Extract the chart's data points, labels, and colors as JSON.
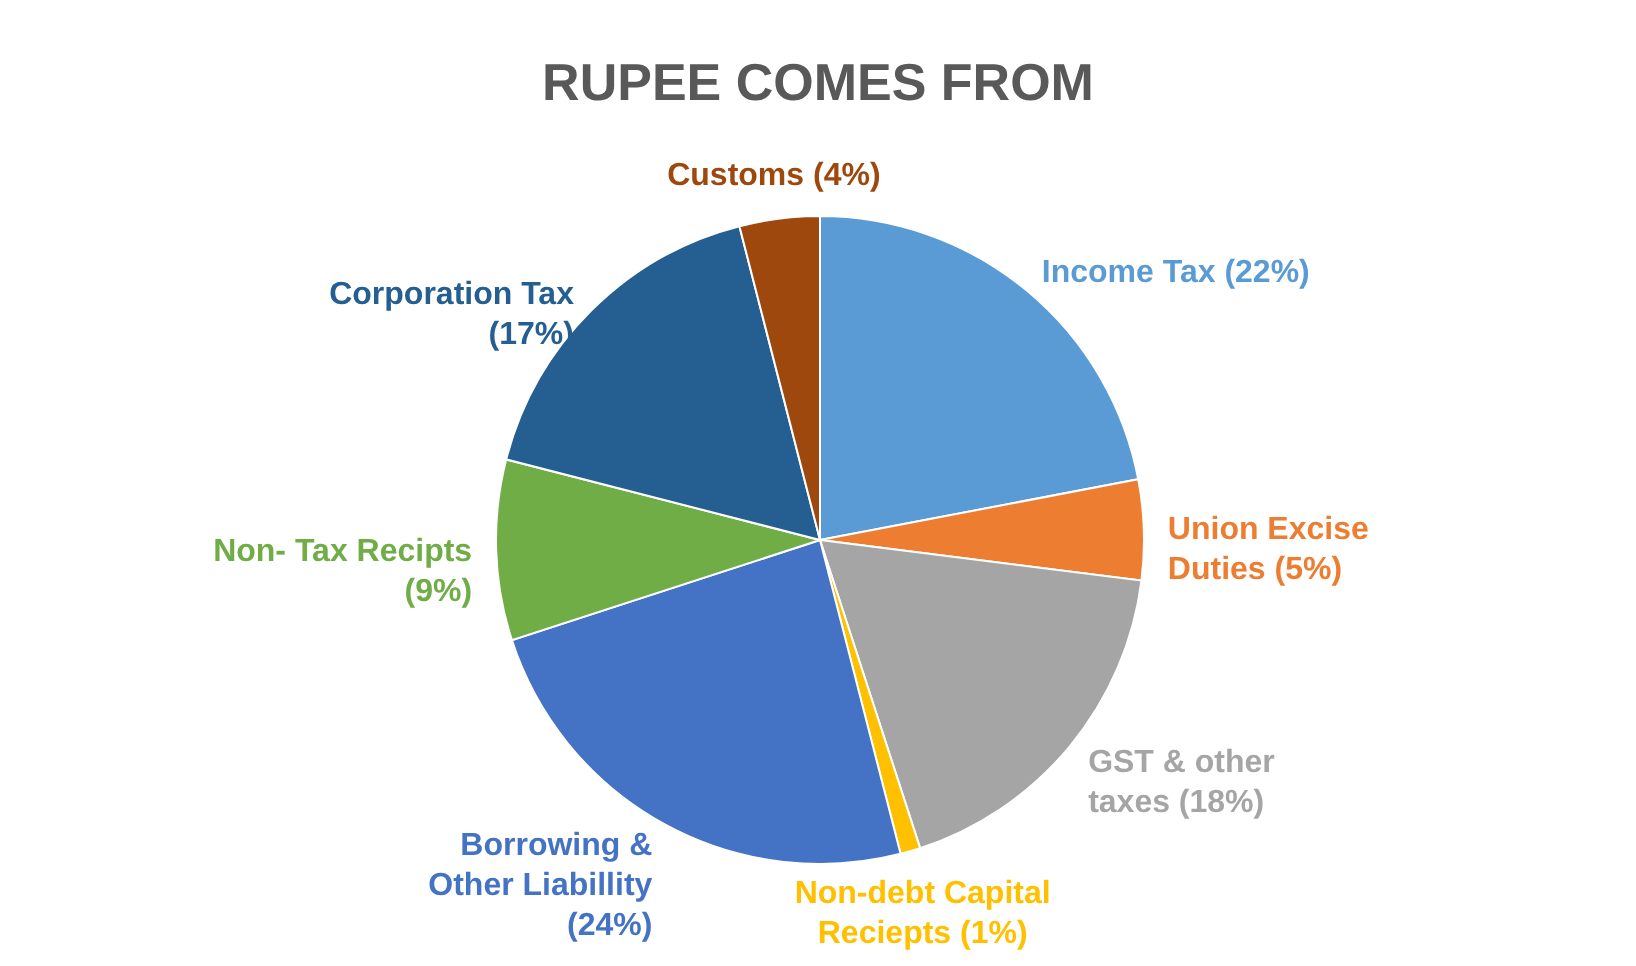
{
  "chart_data": {
    "type": "pie",
    "title": "RUPEE COMES FROM",
    "categories": [
      "Income Tax",
      "Union Excise Duties",
      "GST & other taxes",
      "Non-debt Capital Reciepts",
      "Borrowing & Other Liabillity",
      "Non- Tax Recipts",
      "Corporation Tax",
      "Customs"
    ],
    "values": [
      22,
      5,
      18,
      1,
      24,
      9,
      17,
      4
    ],
    "value_labels": [
      "(22%)",
      "(5%)",
      "(18%)",
      "(1%)",
      "(24%)",
      "(9%)",
      "(17%)",
      "(4%)"
    ],
    "colors": [
      "#5b9bd5",
      "#ed7d31",
      "#a5a5a5",
      "#ffc000",
      "#4472c4",
      "#70ad47",
      "#255e91",
      "#9e480e"
    ]
  }
}
